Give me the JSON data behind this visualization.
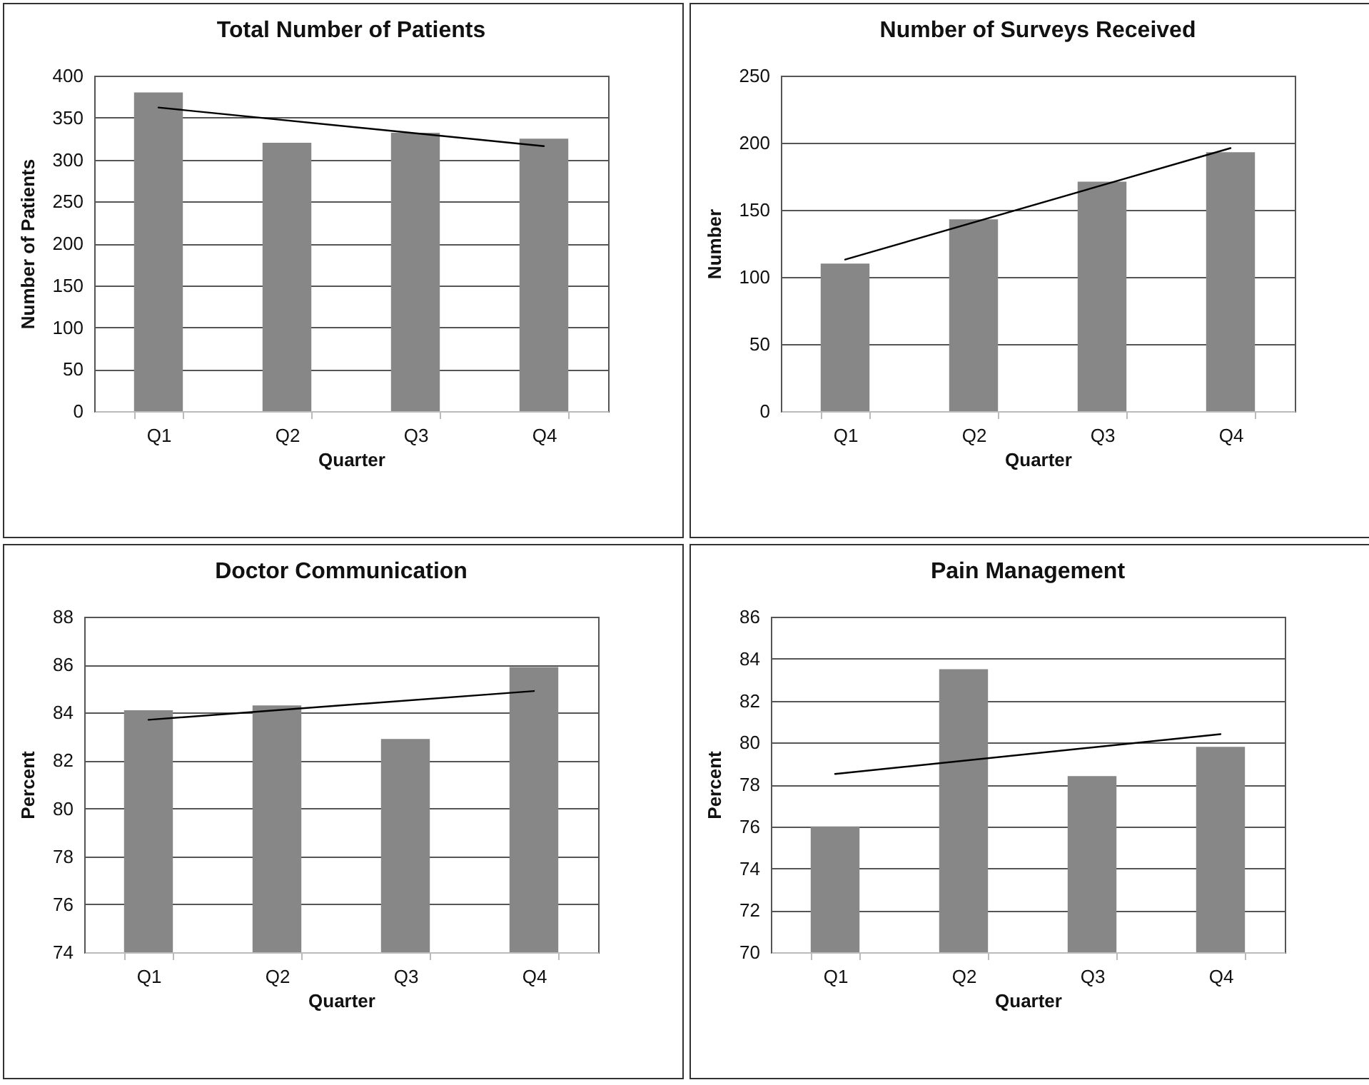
{
  "chart_data": [
    {
      "type": "bar",
      "title": "Total Number of Patients",
      "xlabel": "Quarter",
      "ylabel": "Number of Patients",
      "categories": [
        "Q1",
        "Q2",
        "Q3",
        "Q4"
      ],
      "ylim": [
        0,
        400
      ],
      "yticks": [
        0,
        50,
        100,
        150,
        200,
        250,
        300,
        350,
        400
      ],
      "grid": "y",
      "series": [
        {
          "color": "#878787",
          "values": [
            380,
            320,
            332,
            325
          ]
        },
        {
          "type": "line",
          "color": "#000000",
          "x": [
            "Q1",
            "Q4"
          ],
          "values": [
            362,
            316
          ]
        }
      ]
    },
    {
      "type": "bar",
      "title": "Number of Surveys Received",
      "xlabel": "Quarter",
      "ylabel": "Number",
      "categories": [
        "Q1",
        "Q2",
        "Q3",
        "Q4"
      ],
      "ylim": [
        0,
        250
      ],
      "yticks": [
        0,
        50,
        100,
        150,
        200,
        250
      ],
      "grid": "y",
      "series": [
        {
          "color": "#878787",
          "values": [
            110,
            143,
            171,
            193
          ]
        },
        {
          "type": "line",
          "color": "#000000",
          "x": [
            "Q1",
            "Q4"
          ],
          "values": [
            113,
            196
          ]
        }
      ]
    },
    {
      "type": "bar",
      "title": "Doctor Communication",
      "xlabel": "Quarter",
      "ylabel": "Percent",
      "categories": [
        "Q1",
        "Q2",
        "Q3",
        "Q4"
      ],
      "ylim": [
        74,
        88
      ],
      "yticks": [
        74,
        76,
        78,
        80,
        82,
        84,
        86,
        88
      ],
      "grid": "y",
      "series": [
        {
          "color": "#878787",
          "values": [
            84.1,
            84.3,
            82.9,
            85.9
          ]
        },
        {
          "type": "line",
          "color": "#000000",
          "x": [
            "Q1",
            "Q4"
          ],
          "values": [
            83.7,
            84.9
          ]
        }
      ]
    },
    {
      "type": "bar",
      "title": "Pain Management",
      "xlabel": "Quarter",
      "ylabel": "Percent",
      "categories": [
        "Q1",
        "Q2",
        "Q3",
        "Q4"
      ],
      "ylim": [
        70,
        86
      ],
      "yticks": [
        70,
        72,
        74,
        76,
        78,
        80,
        82,
        84,
        86
      ],
      "grid": "y",
      "series": [
        {
          "color": "#878787",
          "values": [
            76.0,
            83.5,
            78.4,
            79.8
          ]
        },
        {
          "type": "line",
          "color": "#000000",
          "x": [
            "Q1",
            "Q4"
          ],
          "values": [
            78.5,
            80.4
          ]
        }
      ]
    }
  ]
}
